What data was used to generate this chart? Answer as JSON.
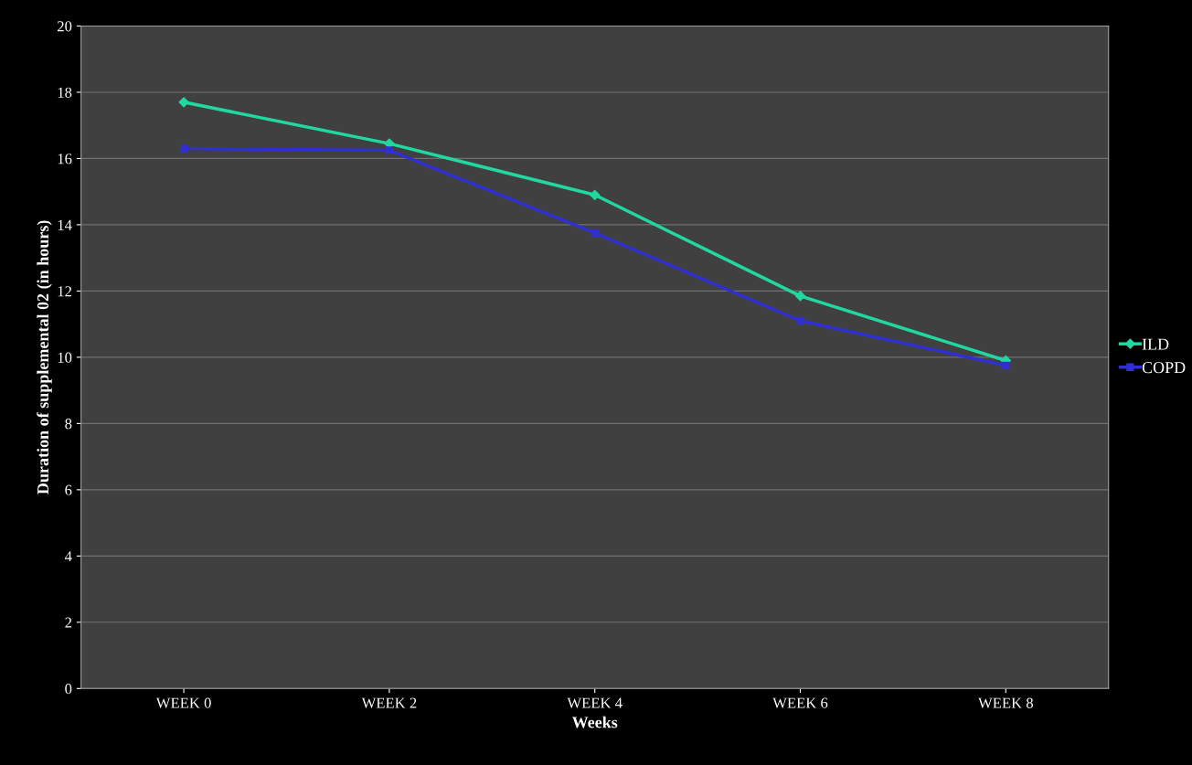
{
  "chart_data": {
    "type": "line",
    "xlabel": "Weeks",
    "ylabel": "Duration of supplemental 02 (in hours)",
    "categories": [
      "WEEK 0",
      "WEEK 2",
      "WEEK 4",
      "WEEK 6",
      "WEEK 8"
    ],
    "series": [
      {
        "name": "ILD",
        "color": "#20d8a0",
        "marker": "diamond",
        "values": [
          17.7,
          16.45,
          14.9,
          11.85,
          9.9
        ]
      },
      {
        "name": "COPD",
        "color": "#3030d0",
        "marker": "square",
        "values": [
          16.3,
          16.25,
          13.75,
          11.1,
          9.75
        ]
      }
    ],
    "ylim": [
      0,
      20
    ],
    "yticks": [
      0,
      2,
      4,
      6,
      8,
      10,
      12,
      14,
      16,
      18,
      20
    ],
    "grid": "y",
    "legend": "right",
    "line_style": "solid"
  }
}
